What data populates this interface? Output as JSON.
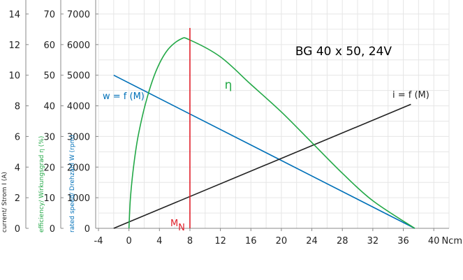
{
  "chart_data": {
    "type": "line",
    "title": "BG 40 x 50, 24V",
    "xlabel": "Ncm",
    "x_ticks": [
      "-4",
      "0",
      "4",
      "8",
      "12",
      "16",
      "20",
      "24",
      "28",
      "32",
      "36",
      "40"
    ],
    "xlim": [
      -4,
      42
    ],
    "grid": true,
    "axes": [
      {
        "id": "speed",
        "label": "rated speed/ Drehzahl W (rpm)",
        "ticks": [
          "0",
          "1000",
          "2000",
          "3000",
          "4000",
          "5000",
          "6000",
          "7000"
        ],
        "range": [
          0,
          7000
        ],
        "color": "#0070b8"
      },
      {
        "id": "efficiency",
        "label": "efficiency/ Wirkungsgrad η (%)",
        "ticks": [
          "0",
          "10",
          "20",
          "30",
          "40",
          "50",
          "60",
          "70"
        ],
        "range": [
          0,
          70
        ],
        "color": "#22a846"
      },
      {
        "id": "current",
        "label": "current/ Strom I (A)",
        "ticks": [
          "0",
          "2",
          "4",
          "6",
          "8",
          "10",
          "12",
          "14"
        ],
        "range": [
          0,
          14
        ],
        "color": "#222222"
      }
    ],
    "series": [
      {
        "name": "w = f (M)",
        "axis": "speed",
        "color": "#0070b8",
        "points": [
          [
            -2,
            5000
          ],
          [
            37.5,
            0
          ]
        ]
      },
      {
        "name": "i = f (M)",
        "axis": "current",
        "color": "#222222",
        "points": [
          [
            -2,
            0
          ],
          [
            37,
            8.1
          ]
        ]
      },
      {
        "name": "η",
        "axis": "efficiency",
        "color": "#22a846",
        "points": [
          [
            0,
            0
          ],
          [
            0.2,
            10
          ],
          [
            0.6,
            20
          ],
          [
            1.2,
            30
          ],
          [
            2.2,
            41
          ],
          [
            3.5,
            51
          ],
          [
            5,
            58
          ],
          [
            6.8,
            61.8
          ],
          [
            8,
            61.5
          ],
          [
            12,
            56
          ],
          [
            16,
            47
          ],
          [
            20,
            38
          ],
          [
            24,
            28
          ],
          [
            28,
            18
          ],
          [
            32,
            9
          ],
          [
            37.5,
            0
          ]
        ]
      }
    ],
    "annotations": [
      {
        "id": "rated-torque",
        "text": "M",
        "subscript": "N",
        "x": 8,
        "color": "#e0202a"
      }
    ]
  }
}
